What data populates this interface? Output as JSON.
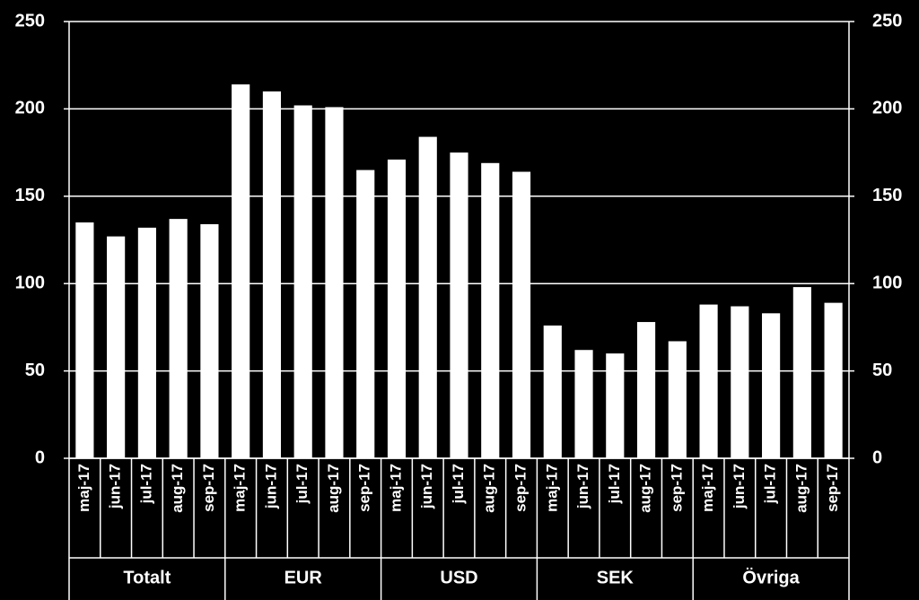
{
  "chart_data": {
    "type": "bar",
    "categories": [
      "maj-17",
      "jun-17",
      "jul-17",
      "aug-17",
      "sep-17",
      "maj-17",
      "jun-17",
      "jul-17",
      "aug-17",
      "sep-17",
      "maj-17",
      "jun-17",
      "jul-17",
      "aug-17",
      "sep-17",
      "maj-17",
      "jun-17",
      "jul-17",
      "aug-17",
      "sep-17",
      "maj-17",
      "jun-17",
      "jul-17",
      "aug-17",
      "sep-17"
    ],
    "groups": [
      "Totalt",
      "EUR",
      "USD",
      "SEK",
      "Övriga"
    ],
    "values": [
      135,
      127,
      132,
      137,
      134,
      214,
      210,
      202,
      201,
      165,
      171,
      184,
      175,
      169,
      164,
      76,
      62,
      60,
      78,
      67,
      88,
      87,
      83,
      98,
      89
    ],
    "color": "#ffffff",
    "ylim": [
      0,
      250
    ],
    "yticks": [
      0,
      50,
      100,
      150,
      200,
      250
    ],
    "y2lim": [
      0,
      250
    ],
    "y2ticks": [
      0,
      50,
      100,
      150,
      200,
      250
    ],
    "grid": true
  }
}
